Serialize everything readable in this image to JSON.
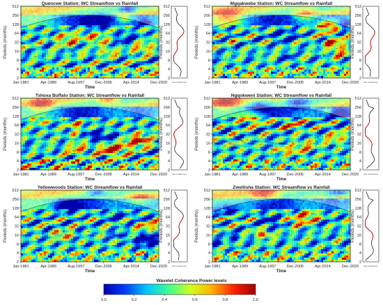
{
  "chart_data": [
    {
      "type": "heatmap",
      "title": "Quencwe Station: WC Streamflow vs Rainfall",
      "xlabel": "Time",
      "ylabel": "Periods (months)",
      "x_ticks": [
        "Jan-1981",
        "Apr-1989",
        "Aug-1997",
        "Dec-2005",
        "Apr-2014",
        "Dec-2020"
      ],
      "y_ticks": [
        "2",
        "4",
        "8",
        "16",
        "32",
        "64",
        "128",
        "256",
        "512"
      ],
      "side_ylabel": "Periods (months)",
      "side_xlabel": "Ave Coherence",
      "legend": "",
      "seed": 11,
      "warm_period_range": [
        4,
        32
      ],
      "avg_coherence_label": "Ave Coherence"
    },
    {
      "type": "heatmap",
      "title": "Mgqakwebe  Station: WC Streamflow vs Rainfall",
      "xlabel": "Time",
      "ylabel": "Periods (months)",
      "x_ticks": [
        "Jan-1981",
        "Apr-1989",
        "Aug-1997",
        "Dec-2005",
        "Apr-2014",
        "Dec-2020"
      ],
      "y_ticks": [
        "2",
        "4",
        "8",
        "16",
        "32",
        "64",
        "128",
        "256",
        "512"
      ],
      "side_ylabel": "Periods (months)",
      "side_xlabel": "Ave Coherence",
      "seed": 23,
      "warm_period_range": [
        8,
        64
      ],
      "avg_coherence_label": "Ave Coherence"
    },
    {
      "type": "heatmap",
      "title": "Tshoxa Buffalo  Station: WC Streamflow vs Rainfall",
      "xlabel": "Time",
      "ylabel": "Periods (months)",
      "x_ticks": [
        "Jan-1981",
        "Apr-1989",
        "Aug-1997",
        "Dec-2005",
        "Apr-2014",
        "Dec-2020"
      ],
      "y_ticks": [
        "2",
        "4",
        "8",
        "16",
        "32",
        "64",
        "128",
        "256",
        "512"
      ],
      "side_ylabel": "Periods (months)",
      "side_xlabel": "Ave Coherence",
      "seed": 37,
      "warm_period_range": [
        2,
        16
      ],
      "avg_coherence_label": "Ave Coherence"
    },
    {
      "type": "heatmap",
      "title": "Ngqokweni  Station: WC Streamflow vs Rainfall",
      "xlabel": "Time",
      "ylabel": "Periods (months)",
      "x_ticks": [
        "Jan-1981",
        "Apr-1989",
        "Aug-1997",
        "Dec-2005",
        "Apr-2014",
        "Dec-2020"
      ],
      "y_ticks": [
        "2",
        "4",
        "8",
        "16",
        "32",
        "64",
        "128",
        "256",
        "512"
      ],
      "side_ylabel": "Periods (months)",
      "side_xlabel": "Ave Coherence",
      "seed": 51,
      "warm_period_range": [
        16,
        128
      ],
      "avg_coherence_label": "Ave Coherence"
    },
    {
      "type": "heatmap",
      "title": "Yellowwoods  Station: WC Streamflow vs Rainfall",
      "xlabel": "Time",
      "ylabel": "Periods (months)",
      "x_ticks": [
        "Jan-1981",
        "Apr-1989",
        "Aug-1997",
        "Dec-2005",
        "Apr-2014",
        "Dec-2020"
      ],
      "y_ticks": [
        "2",
        "4",
        "8",
        "16",
        "32",
        "64",
        "128",
        "256",
        "512"
      ],
      "side_ylabel": "Periods (months)",
      "side_xlabel": "Ave Coherence",
      "seed": 67,
      "warm_period_range": [
        16,
        64
      ],
      "avg_coherence_label": "Ave Coherence"
    },
    {
      "type": "heatmap",
      "title": "Zwelitsha Station: WC Streamflow vs Rainfall",
      "xlabel": "Time",
      "ylabel": "Periods (months)",
      "x_ticks": [
        "Jan-1981",
        "Apr-1989",
        "Aug-1997",
        "Dec-2005",
        "Apr-2014",
        "Dec-2020"
      ],
      "y_ticks": [
        "2",
        "4",
        "8",
        "16",
        "32",
        "64",
        "128",
        "256",
        "512"
      ],
      "side_ylabel": "Periods (months)",
      "side_xlabel": "Ave Coherence",
      "seed": 89,
      "warm_period_range": [
        8,
        64
      ],
      "avg_coherence_label": "Ave Coherence"
    }
  ],
  "colorbar": {
    "title": "Wavelet Coherence Power levels",
    "ticks": [
      "0.0",
      "0.2",
      "0.4",
      "0.6",
      "0.8",
      "1.0"
    ],
    "range": [
      0,
      1
    ],
    "colors": [
      "#0000aa",
      "#0040ff",
      "#00c8ff",
      "#40ff90",
      "#d0ff20",
      "#ffb000",
      "#ff2000",
      "#a00000"
    ]
  }
}
